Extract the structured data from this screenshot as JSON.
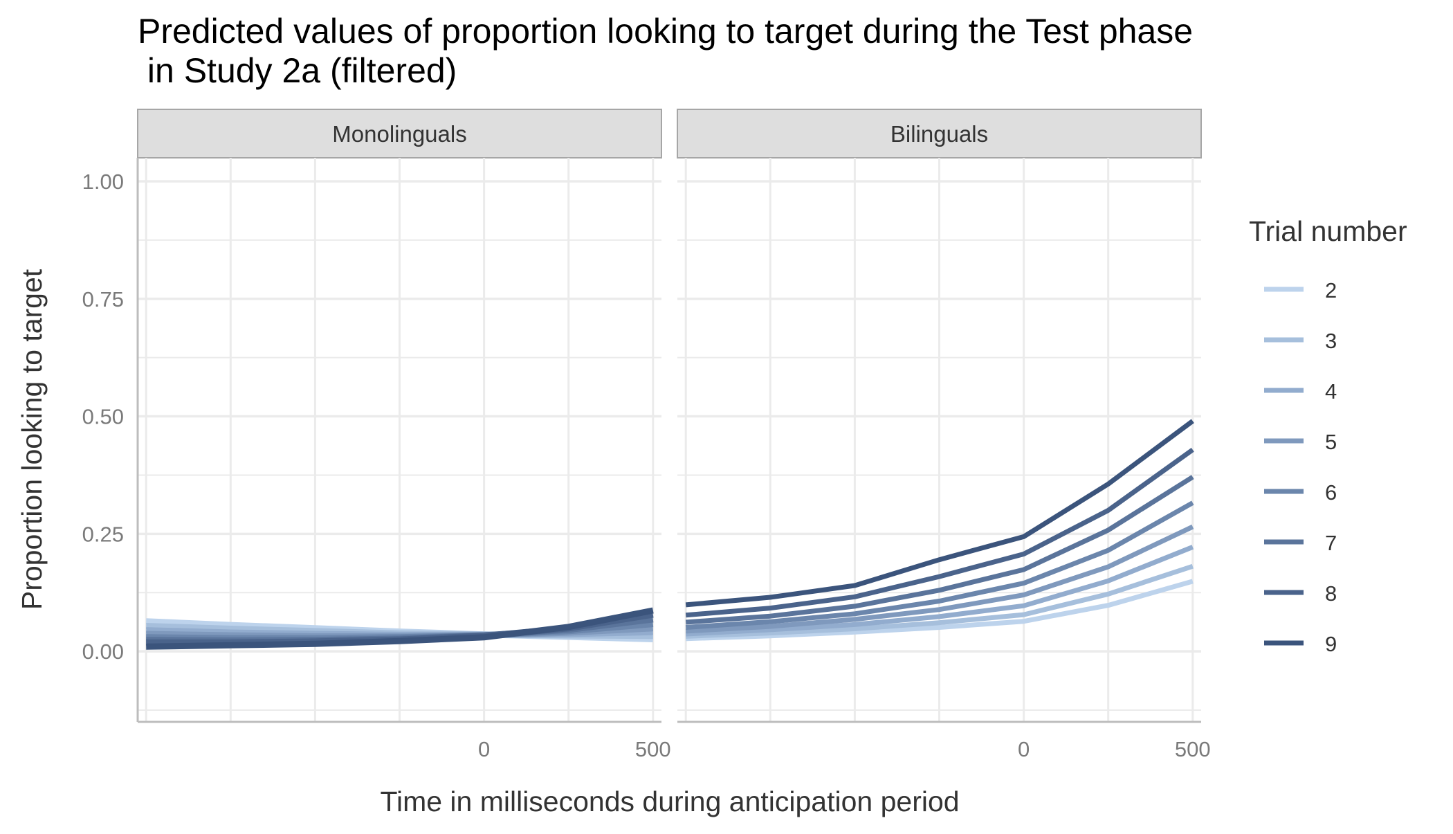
{
  "chart_data": {
    "type": "line",
    "title_lines": [
      "Predicted values of proportion looking to target during the Test phase",
      " in Study 2a (filtered)"
    ],
    "xlabel": "Time in milliseconds during anticipation period",
    "ylabel": "Proportion looking to target",
    "xlim": [
      -1025,
      525
    ],
    "ylim": [
      -0.15,
      1.05
    ],
    "x_ticks": [
      0,
      500
    ],
    "y_ticks": [
      0.0,
      0.25,
      0.5,
      0.75,
      1.0
    ],
    "y_tick_labels": [
      "0.00",
      "0.25",
      "0.50",
      "0.75",
      "1.00"
    ],
    "x_gridlines": [
      -1000,
      -750,
      -500,
      -250,
      0,
      250,
      500
    ],
    "y_gridlines": [
      -0.125,
      0.0,
      0.125,
      0.25,
      0.375,
      0.5,
      0.625,
      0.75,
      0.875,
      1.0
    ],
    "x": [
      -1000,
      -750,
      -500,
      -250,
      0,
      250,
      500
    ],
    "legend_title": "Trial number",
    "legend_position": "right",
    "grid": true,
    "colors": [
      "#bdd3ec",
      "#a6bfdc",
      "#92acce",
      "#7f99bd",
      "#6b86ac",
      "#5a749b",
      "#4a638b",
      "#3b547c"
    ],
    "panels": [
      {
        "title": "Monolinguals",
        "series": [
          {
            "name": "2",
            "values": [
              0.064,
              0.056,
              0.049,
              0.042,
              0.036,
              0.031,
              0.026
            ]
          },
          {
            "name": "3",
            "values": [
              0.054,
              0.048,
              0.043,
              0.038,
              0.036,
              0.034,
              0.033
            ]
          },
          {
            "name": "4",
            "values": [
              0.045,
              0.04,
              0.037,
              0.035,
              0.035,
              0.037,
              0.041
            ]
          },
          {
            "name": "5",
            "values": [
              0.037,
              0.034,
              0.032,
              0.032,
              0.034,
              0.04,
              0.049
            ]
          },
          {
            "name": "6",
            "values": [
              0.03,
              0.028,
              0.028,
              0.03,
              0.034,
              0.043,
              0.058
            ]
          },
          {
            "name": "7",
            "values": [
              0.024,
              0.023,
              0.024,
              0.027,
              0.034,
              0.046,
              0.068
            ]
          },
          {
            "name": "8",
            "values": [
              0.019,
              0.019,
              0.021,
              0.025,
              0.033,
              0.049,
              0.078
            ]
          },
          {
            "name": "9",
            "values": [
              0.01,
              0.013,
              0.016,
              0.022,
              0.03,
              0.052,
              0.087
            ]
          }
        ]
      },
      {
        "title": "Bilinguals",
        "series": [
          {
            "name": "2",
            "values": [
              0.027,
              0.033,
              0.041,
              0.051,
              0.064,
              0.098,
              0.149
            ]
          },
          {
            "name": "3",
            "values": [
              0.032,
              0.039,
              0.048,
              0.061,
              0.078,
              0.122,
              0.181
            ]
          },
          {
            "name": "4",
            "values": [
              0.037,
              0.046,
              0.057,
              0.074,
              0.097,
              0.15,
              0.222
            ]
          },
          {
            "name": "5",
            "values": [
              0.043,
              0.053,
              0.068,
              0.089,
              0.12,
              0.18,
              0.265
            ]
          },
          {
            "name": "6",
            "values": [
              0.051,
              0.063,
              0.08,
              0.107,
              0.145,
              0.215,
              0.316
            ]
          },
          {
            "name": "7",
            "values": [
              0.062,
              0.075,
              0.096,
              0.13,
              0.174,
              0.258,
              0.371
            ]
          },
          {
            "name": "8",
            "values": [
              0.077,
              0.092,
              0.116,
              0.159,
              0.207,
              0.3,
              0.429
            ]
          },
          {
            "name": "9",
            "values": [
              0.099,
              0.115,
              0.14,
              0.195,
              0.244,
              0.356,
              0.49
            ]
          }
        ]
      }
    ]
  }
}
